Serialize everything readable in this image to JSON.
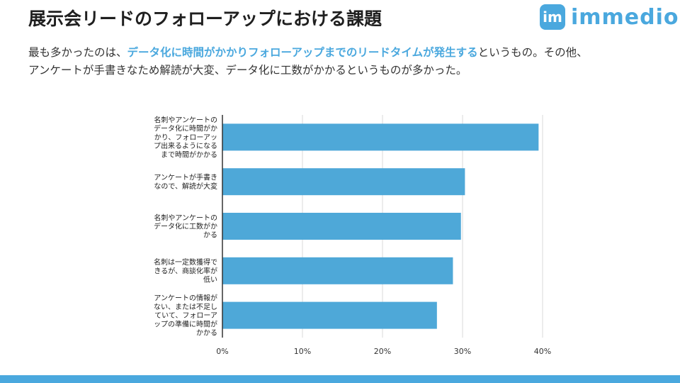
{
  "slide": {
    "title": "展示会リードのフォローアップにおける課題",
    "logo_mark": "im",
    "logo_text": "immedio",
    "desc_part1": "最も多かったのは、",
    "desc_highlight": "データ化に時間がかかりフォローアップまでのリードタイムが発生する",
    "desc_part2": "というもの。その他、",
    "desc_line2": "アンケートが手書きなため解読が大変、データ化に工数がかかるというものが多かった。"
  },
  "colors": {
    "accent": "#4aa8de",
    "bar": "#4ea8d8",
    "grid": "#d9d9d9",
    "axis": "#333333"
  },
  "chart_data": {
    "type": "bar",
    "orientation": "horizontal",
    "title": "",
    "xlabel": "",
    "ylabel": "",
    "xlim": [
      0,
      40
    ],
    "ticks": [
      "0%",
      "10%",
      "20%",
      "30%",
      "40%"
    ],
    "tick_values": [
      0,
      10,
      20,
      30,
      40
    ],
    "categories": [
      [
        "名刺やアンケートの",
        "データ化に時間がか",
        "かり、フォローアッ",
        "プ出来るようになる",
        "まで時間がかかる"
      ],
      [
        "アンケートが手書き",
        "なので、解読が大変"
      ],
      [
        "名刺やアンケートの",
        "データ化に工数がか",
        "かる"
      ],
      [
        "名刺は一定数獲得で",
        "きるが、商談化率が",
        "低い"
      ],
      [
        "アンケートの情報が",
        "ない、または不足し",
        "ていて、フォローア",
        "ップの準備に時間が",
        "かかる"
      ]
    ],
    "values": [
      39.5,
      30.3,
      29.8,
      28.8,
      26.8
    ],
    "grid": true
  }
}
